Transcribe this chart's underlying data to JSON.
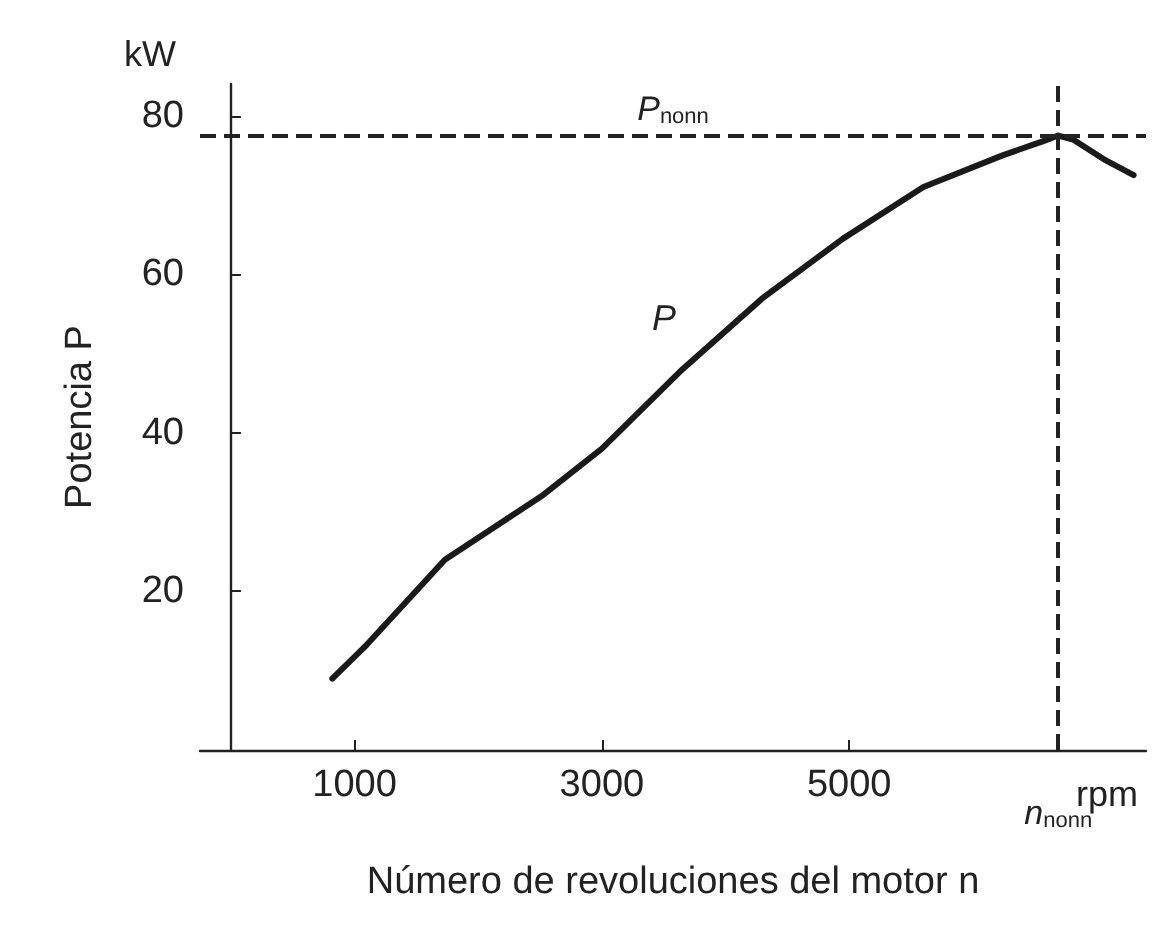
{
  "chart_data": {
    "type": "line",
    "xlabel": "Número de revoluciones del motor n",
    "ylabel": "Potencia P",
    "x": [
      820,
      1100,
      1730,
      2510,
      3000,
      3650,
      4300,
      4950,
      5600,
      6240,
      6570,
      6690,
      6810,
      7060,
      7300
    ],
    "series": [
      {
        "color": "#1a1a1a",
        "values": [
          9,
          13.3,
          24,
          32,
          38,
          48,
          57,
          64.5,
          71,
          75,
          76.8,
          77.5,
          77,
          74.5,
          72.5
        ]
      }
    ],
    "xlim": [
      -250,
      7400
    ],
    "ylim": [
      0,
      84
    ],
    "xticks": [
      1000,
      3000,
      5000
    ],
    "yticks": [
      20,
      40,
      60,
      80
    ],
    "ref_lines": [
      {
        "axis": "y",
        "value": 77.5,
        "label": "P$_{nonn}$",
        "line_style": "dashed"
      },
      {
        "axis": "x",
        "value": 6690,
        "label": "n$_{nonn}$",
        "line_style": "dashed"
      }
    ],
    "annotations": [
      "kW",
      "rpm",
      "P"
    ],
    "grid": false,
    "marker": "none",
    "line_style": "solid"
  }
}
